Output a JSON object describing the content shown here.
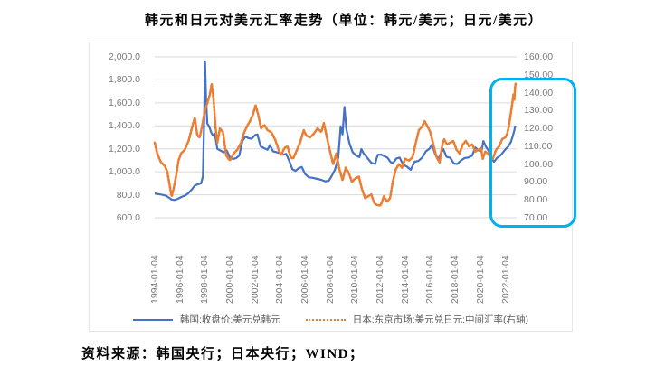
{
  "title": "韩元和日元对美元汇率走势（单位：韩元/美元；日元/美元）",
  "source_note": "资料来源：韩国央行；日本央行；WIND；",
  "chart_data": {
    "type": "line",
    "title": "韩元和日元对美元汇率走势（单位：韩元/美元；日元/美元）",
    "grid": true,
    "legend_position": "bottom",
    "colors": {
      "korea_line": "#4472C4",
      "japan_line": "#ED7D31",
      "gridline": "#D9D9D9",
      "axis_text": "#7a7a7a",
      "highlight_box": "#00B0F0"
    },
    "left_axis": {
      "min": 600,
      "max": 2000,
      "ticks": [
        {
          "value": 2000,
          "label": "2,000.0"
        },
        {
          "value": 1800,
          "label": "1,800.0"
        },
        {
          "value": 1600,
          "label": "1,600.0"
        },
        {
          "value": 1400,
          "label": "1,400.0"
        },
        {
          "value": 1200,
          "label": "1,200.0"
        },
        {
          "value": 1000,
          "label": "1,000.0"
        },
        {
          "value": 800,
          "label": "800.0"
        },
        {
          "value": 600,
          "label": "600.0"
        }
      ]
    },
    "right_axis": {
      "min": 70,
      "max": 160,
      "ticks": [
        {
          "value": 160,
          "label": "160.00"
        },
        {
          "value": 150,
          "label": "150.00"
        },
        {
          "value": 140,
          "label": "140.00"
        },
        {
          "value": 130,
          "label": "130.00"
        },
        {
          "value": 120,
          "label": "120.00"
        },
        {
          "value": 110,
          "label": "110.00"
        },
        {
          "value": 100,
          "label": "100.00"
        },
        {
          "value": 90,
          "label": "90.00"
        },
        {
          "value": 80,
          "label": "80.00"
        },
        {
          "value": 70,
          "label": "70.00"
        }
      ]
    },
    "x_axis": {
      "min": 1994,
      "max": 2022.9,
      "ticks": [
        {
          "value": 1994,
          "label": "1994-01-04"
        },
        {
          "value": 1996,
          "label": "1996-01-04"
        },
        {
          "value": 1998,
          "label": "1998-01-04"
        },
        {
          "value": 2000,
          "label": "2000-01-04"
        },
        {
          "value": 2002,
          "label": "2002-01-04"
        },
        {
          "value": 2004,
          "label": "2004-01-04"
        },
        {
          "value": 2006,
          "label": "2006-01-04"
        },
        {
          "value": 2008,
          "label": "2008-01-04"
        },
        {
          "value": 2010,
          "label": "2010-01-04"
        },
        {
          "value": 2012,
          "label": "2012-01-04"
        },
        {
          "value": 2014,
          "label": "2014-01-04"
        },
        {
          "value": 2016,
          "label": "2016-01-04"
        },
        {
          "value": 2018,
          "label": "2018-01-04"
        },
        {
          "value": 2020,
          "label": "2020-01-04"
        },
        {
          "value": 2022,
          "label": "2022-01-04"
        }
      ]
    },
    "legend": [
      {
        "label": "韩国:收盘价:美元兑韩元",
        "color": "#4472C4",
        "style": "solid"
      },
      {
        "label": "日本:东京市场:美元兑日元:中间汇率(右轴)",
        "color": "#ED7D31",
        "style": "dotted"
      }
    ],
    "highlight": {
      "color": "#00B0F0",
      "region": "2021年以来（右轴 140.00–70.00 区段）"
    },
    "series": [
      {
        "name": "韩国:收盘价:美元兑韩元",
        "axis": "left",
        "color": "#4472C4",
        "style": "solid",
        "points": [
          [
            1994.0,
            812
          ],
          [
            1994.3,
            806
          ],
          [
            1994.6,
            800
          ],
          [
            1994.9,
            792
          ],
          [
            1995.1,
            778
          ],
          [
            1995.35,
            758
          ],
          [
            1995.6,
            755
          ],
          [
            1995.85,
            765
          ],
          [
            1996.1,
            780
          ],
          [
            1996.4,
            792
          ],
          [
            1996.7,
            815
          ],
          [
            1997.0,
            852
          ],
          [
            1997.2,
            880
          ],
          [
            1997.45,
            892
          ],
          [
            1997.7,
            900
          ],
          [
            1997.85,
            960
          ],
          [
            1997.95,
            1480
          ],
          [
            1998.02,
            1960
          ],
          [
            1998.1,
            1640
          ],
          [
            1998.2,
            1420
          ],
          [
            1998.35,
            1395
          ],
          [
            1998.5,
            1345
          ],
          [
            1998.65,
            1315
          ],
          [
            1998.8,
            1330
          ],
          [
            1999.0,
            1200
          ],
          [
            1999.25,
            1185
          ],
          [
            1999.5,
            1170
          ],
          [
            1999.75,
            1185
          ],
          [
            2000.0,
            1128
          ],
          [
            2000.25,
            1112
          ],
          [
            2000.5,
            1118
          ],
          [
            2000.75,
            1142
          ],
          [
            2001.0,
            1268
          ],
          [
            2001.25,
            1308
          ],
          [
            2001.5,
            1292
          ],
          [
            2001.75,
            1288
          ],
          [
            2002.0,
            1318
          ],
          [
            2002.2,
            1326
          ],
          [
            2002.45,
            1222
          ],
          [
            2002.7,
            1208
          ],
          [
            2003.0,
            1192
          ],
          [
            2003.2,
            1232
          ],
          [
            2003.45,
            1178
          ],
          [
            2003.7,
            1172
          ],
          [
            2004.0,
            1162
          ],
          [
            2004.25,
            1148
          ],
          [
            2004.5,
            1156
          ],
          [
            2004.75,
            1092
          ],
          [
            2005.0,
            1022
          ],
          [
            2005.25,
            1008
          ],
          [
            2005.5,
            1032
          ],
          [
            2005.75,
            1042
          ],
          [
            2006.0,
            982
          ],
          [
            2006.3,
            952
          ],
          [
            2006.6,
            948
          ],
          [
            2007.0,
            938
          ],
          [
            2007.3,
            930
          ],
          [
            2007.6,
            918
          ],
          [
            2007.9,
            922
          ],
          [
            2008.1,
            958
          ],
          [
            2008.4,
            1020
          ],
          [
            2008.65,
            1120
          ],
          [
            2008.85,
            1395
          ],
          [
            2009.0,
            1325
          ],
          [
            2009.15,
            1565
          ],
          [
            2009.3,
            1372
          ],
          [
            2009.55,
            1248
          ],
          [
            2009.8,
            1172
          ],
          [
            2010.1,
            1140
          ],
          [
            2010.35,
            1128
          ],
          [
            2010.5,
            1198
          ],
          [
            2010.7,
            1158
          ],
          [
            2011.0,
            1118
          ],
          [
            2011.3,
            1078
          ],
          [
            2011.6,
            1068
          ],
          [
            2011.8,
            1148
          ],
          [
            2012.1,
            1150
          ],
          [
            2012.35,
            1136
          ],
          [
            2012.6,
            1122
          ],
          [
            2012.85,
            1082
          ],
          [
            2013.05,
            1078
          ],
          [
            2013.3,
            1116
          ],
          [
            2013.55,
            1124
          ],
          [
            2013.85,
            1062
          ],
          [
            2014.15,
            1044
          ],
          [
            2014.45,
            1018
          ],
          [
            2014.75,
            1088
          ],
          [
            2015.05,
            1094
          ],
          [
            2015.35,
            1122
          ],
          [
            2015.65,
            1178
          ],
          [
            2015.95,
            1202
          ],
          [
            2016.15,
            1238
          ],
          [
            2016.4,
            1152
          ],
          [
            2016.65,
            1112
          ],
          [
            2016.9,
            1172
          ],
          [
            2017.05,
            1198
          ],
          [
            2017.3,
            1130
          ],
          [
            2017.6,
            1122
          ],
          [
            2017.9,
            1072
          ],
          [
            2018.15,
            1068
          ],
          [
            2018.45,
            1098
          ],
          [
            2018.75,
            1120
          ],
          [
            2019.05,
            1125
          ],
          [
            2019.35,
            1142
          ],
          [
            2019.6,
            1212
          ],
          [
            2019.85,
            1186
          ],
          [
            2020.1,
            1178
          ],
          [
            2020.25,
            1268
          ],
          [
            2020.45,
            1218
          ],
          [
            2020.7,
            1176
          ],
          [
            2020.9,
            1112
          ],
          [
            2021.1,
            1088
          ],
          [
            2021.35,
            1122
          ],
          [
            2021.6,
            1142
          ],
          [
            2021.85,
            1175
          ],
          [
            2022.05,
            1200
          ],
          [
            2022.25,
            1222
          ],
          [
            2022.45,
            1262
          ],
          [
            2022.6,
            1312
          ],
          [
            2022.72,
            1362
          ],
          [
            2022.8,
            1402
          ]
        ]
      },
      {
        "name": "日本:东京市场:美元兑日元:中间汇率(右轴)",
        "axis": "right",
        "color": "#ED7D31",
        "style": "dotted",
        "points": [
          [
            1994.0,
            112
          ],
          [
            1994.2,
            106
          ],
          [
            1994.5,
            101
          ],
          [
            1994.8,
            99
          ],
          [
            1995.0,
            96
          ],
          [
            1995.2,
            88
          ],
          [
            1995.35,
            82
          ],
          [
            1995.5,
            86
          ],
          [
            1995.7,
            93
          ],
          [
            1995.9,
            102
          ],
          [
            1996.1,
            106
          ],
          [
            1996.4,
            108
          ],
          [
            1996.7,
            113
          ],
          [
            1997.0,
            121
          ],
          [
            1997.2,
            126
          ],
          [
            1997.4,
            116
          ],
          [
            1997.6,
            115
          ],
          [
            1997.8,
            122
          ],
          [
            1998.0,
            130
          ],
          [
            1998.2,
            134
          ],
          [
            1998.4,
            139
          ],
          [
            1998.55,
            145
          ],
          [
            1998.7,
            136
          ],
          [
            1998.85,
            121
          ],
          [
            1999.0,
            112
          ],
          [
            1999.2,
            120
          ],
          [
            1999.45,
            118
          ],
          [
            1999.7,
            105
          ],
          [
            2000.0,
            102
          ],
          [
            2000.3,
            106
          ],
          [
            2000.6,
            108
          ],
          [
            2000.9,
            112
          ],
          [
            2001.1,
            117
          ],
          [
            2001.35,
            121
          ],
          [
            2001.6,
            124
          ],
          [
            2001.85,
            128
          ],
          [
            2002.05,
            133
          ],
          [
            2002.25,
            128
          ],
          [
            2002.5,
            120
          ],
          [
            2002.75,
            122
          ],
          [
            2003.0,
            119
          ],
          [
            2003.3,
            118
          ],
          [
            2003.6,
            114
          ],
          [
            2003.9,
            108
          ],
          [
            2004.1,
            105
          ],
          [
            2004.35,
            109
          ],
          [
            2004.6,
            110
          ],
          [
            2004.85,
            104
          ],
          [
            2005.05,
            103
          ],
          [
            2005.3,
            107
          ],
          [
            2005.6,
            112
          ],
          [
            2005.9,
            119
          ],
          [
            2006.1,
            116
          ],
          [
            2006.4,
            115
          ],
          [
            2006.7,
            117
          ],
          [
            2007.0,
            120
          ],
          [
            2007.3,
            118
          ],
          [
            2007.5,
            123
          ],
          [
            2007.75,
            115
          ],
          [
            2008.0,
            107
          ],
          [
            2008.25,
            100
          ],
          [
            2008.5,
            106
          ],
          [
            2008.75,
            97
          ],
          [
            2009.0,
            91
          ],
          [
            2009.25,
            98
          ],
          [
            2009.5,
            95
          ],
          [
            2009.75,
            90
          ],
          [
            2010.0,
            92
          ],
          [
            2010.3,
            93
          ],
          [
            2010.55,
            86
          ],
          [
            2010.8,
            81
          ],
          [
            2011.05,
            82
          ],
          [
            2011.3,
            83
          ],
          [
            2011.55,
            78
          ],
          [
            2011.8,
            77
          ],
          [
            2012.05,
            77
          ],
          [
            2012.3,
            82
          ],
          [
            2012.55,
            79
          ],
          [
            2012.8,
            81
          ],
          [
            2013.0,
            90
          ],
          [
            2013.25,
            97
          ],
          [
            2013.5,
            100
          ],
          [
            2013.75,
            98
          ],
          [
            2014.0,
            103
          ],
          [
            2014.3,
            102
          ],
          [
            2014.6,
            104
          ],
          [
            2014.85,
            112
          ],
          [
            2015.1,
            119
          ],
          [
            2015.35,
            121
          ],
          [
            2015.55,
            124
          ],
          [
            2015.8,
            121
          ],
          [
            2016.0,
            118
          ],
          [
            2016.25,
            111
          ],
          [
            2016.5,
            104
          ],
          [
            2016.75,
            101
          ],
          [
            2016.95,
            110
          ],
          [
            2017.1,
            114
          ],
          [
            2017.35,
            111
          ],
          [
            2017.6,
            112
          ],
          [
            2017.85,
            113
          ],
          [
            2018.1,
            108
          ],
          [
            2018.35,
            106
          ],
          [
            2018.6,
            111
          ],
          [
            2018.85,
            113
          ],
          [
            2019.1,
            110
          ],
          [
            2019.35,
            111
          ],
          [
            2019.6,
            107
          ],
          [
            2019.85,
            108
          ],
          [
            2020.05,
            109
          ],
          [
            2020.2,
            103
          ],
          [
            2020.4,
            107
          ],
          [
            2020.6,
            106
          ],
          [
            2020.8,
            104
          ],
          [
            2021.0,
            103
          ],
          [
            2021.25,
            108
          ],
          [
            2021.5,
            110
          ],
          [
            2021.75,
            114
          ],
          [
            2022.0,
            115
          ],
          [
            2022.15,
            117
          ],
          [
            2022.3,
            122
          ],
          [
            2022.45,
            129
          ],
          [
            2022.55,
            134
          ],
          [
            2022.65,
            139
          ],
          [
            2022.72,
            136
          ],
          [
            2022.78,
            143
          ],
          [
            2022.82,
            145
          ]
        ]
      }
    ]
  }
}
